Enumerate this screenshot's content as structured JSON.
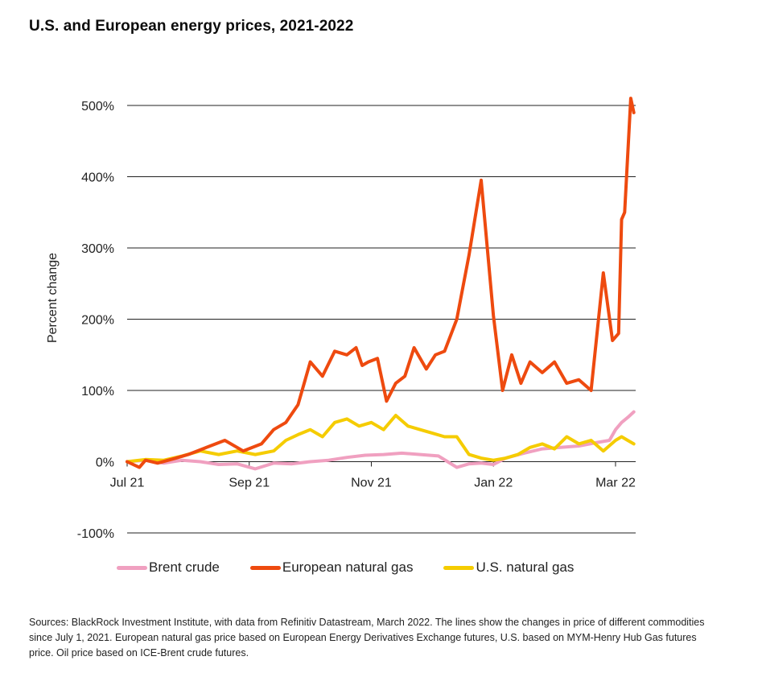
{
  "title": "U.S. and European energy prices, 2021-2022",
  "footnote": "Sources: BlackRock Investment Institute, with data from Refinitiv Datastream, March 2022. The lines show the changes in price of different commodities since July 1, 2021. European natural gas price based on European Energy Derivatives Exchange futures, U.S. based on MYM-Henry Hub Gas futures price. Oil price based on ICE-Brent crude futures.",
  "chart_data": {
    "type": "line",
    "ylabel": "Percent change",
    "xlabel": "",
    "ylim": [
      -100,
      500
    ],
    "xlim": [
      0,
      8.33
    ],
    "grid": "horizontal",
    "legend_position": "bottom",
    "y_ticks": [
      500,
      400,
      300,
      200,
      100,
      0,
      -100
    ],
    "y_tick_labels": [
      "500%",
      "400%",
      "300%",
      "200%",
      "100%",
      "0%",
      "-100%"
    ],
    "x_ticks": [
      0,
      2,
      4,
      6,
      8
    ],
    "x_tick_labels": [
      "Jul 21",
      "Sep 21",
      "Nov 21",
      "Jan 22",
      "Mar 22"
    ],
    "series": [
      {
        "name": "Brent crude",
        "color": "#f0a0c0",
        "x": [
          0,
          0.3,
          0.6,
          0.9,
          1.2,
          1.5,
          1.8,
          2.1,
          2.4,
          2.7,
          3.0,
          3.3,
          3.6,
          3.9,
          4.2,
          4.5,
          4.8,
          5.1,
          5.25,
          5.4,
          5.6,
          5.8,
          6.0,
          6.2,
          6.5,
          6.8,
          7.1,
          7.4,
          7.7,
          7.9,
          8.0,
          8.1,
          8.2,
          8.3
        ],
        "values": [
          0,
          2,
          -2,
          2,
          0,
          -4,
          -3,
          -10,
          -2,
          -3,
          0,
          2,
          6,
          9,
          10,
          12,
          10,
          8,
          0,
          -8,
          -3,
          -2,
          -4,
          5,
          12,
          18,
          20,
          22,
          27,
          30,
          45,
          55,
          62,
          70
        ]
      },
      {
        "name": "European natural gas",
        "color": "#ee4a0f",
        "x": [
          0,
          0.2,
          0.3,
          0.5,
          0.8,
          1.0,
          1.3,
          1.6,
          1.9,
          2.2,
          2.4,
          2.6,
          2.8,
          3.0,
          3.2,
          3.4,
          3.6,
          3.75,
          3.85,
          3.95,
          4.1,
          4.25,
          4.4,
          4.55,
          4.7,
          4.9,
          5.05,
          5.2,
          5.4,
          5.6,
          5.8,
          6.0,
          6.15,
          6.3,
          6.45,
          6.6,
          6.8,
          7.0,
          7.2,
          7.4,
          7.6,
          7.8,
          7.95,
          8.05,
          8.1,
          8.15,
          8.2,
          8.25,
          8.3
        ],
        "values": [
          0,
          -8,
          2,
          -2,
          5,
          10,
          20,
          30,
          15,
          25,
          45,
          55,
          80,
          140,
          120,
          155,
          150,
          160,
          135,
          140,
          145,
          85,
          110,
          120,
          160,
          130,
          150,
          155,
          200,
          290,
          395,
          205,
          100,
          150,
          110,
          140,
          125,
          140,
          110,
          115,
          100,
          265,
          170,
          180,
          340,
          350,
          430,
          510,
          490
        ]
      },
      {
        "name": "U.S. natural gas",
        "color": "#f5cc00",
        "x": [
          0,
          0.3,
          0.6,
          0.9,
          1.2,
          1.5,
          1.8,
          2.1,
          2.4,
          2.6,
          2.8,
          3.0,
          3.2,
          3.4,
          3.6,
          3.8,
          4.0,
          4.2,
          4.4,
          4.6,
          4.8,
          5.0,
          5.2,
          5.4,
          5.6,
          5.8,
          6.0,
          6.2,
          6.4,
          6.6,
          6.8,
          7.0,
          7.2,
          7.4,
          7.6,
          7.8,
          8.0,
          8.1,
          8.2,
          8.3
        ],
        "values": [
          0,
          3,
          2,
          8,
          15,
          10,
          15,
          10,
          15,
          30,
          38,
          45,
          35,
          55,
          60,
          50,
          55,
          45,
          65,
          50,
          45,
          40,
          35,
          35,
          10,
          5,
          2,
          5,
          10,
          20,
          25,
          18,
          35,
          25,
          30,
          15,
          30,
          35,
          30,
          25
        ]
      }
    ]
  }
}
